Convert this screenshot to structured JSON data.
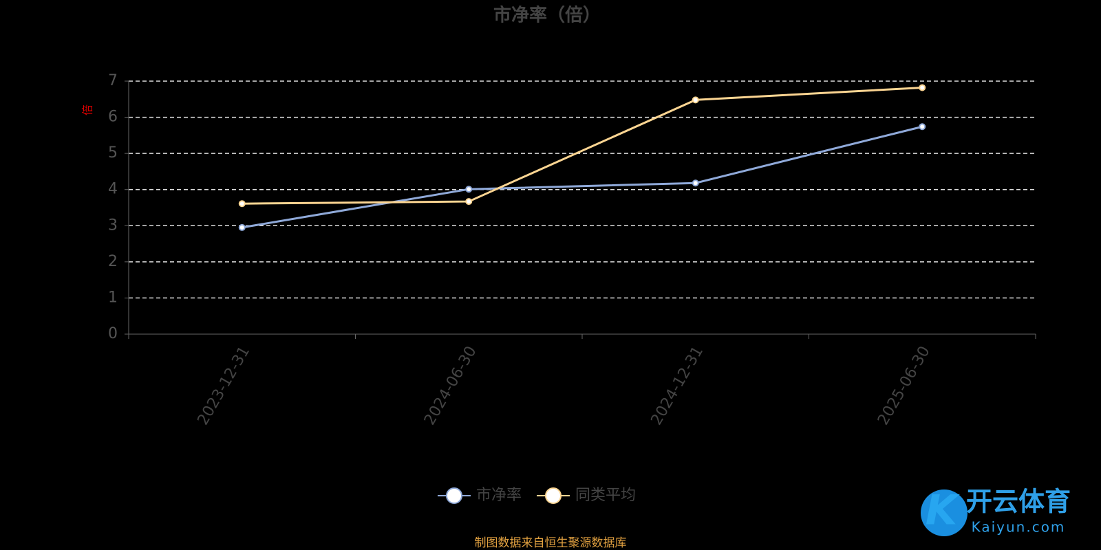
{
  "chart_data": {
    "type": "line",
    "title": "市净率（倍）",
    "y_label": "倍",
    "categories": [
      "2023-12-31",
      "2024-06-30",
      "2024-12-31",
      "2025-06-30"
    ],
    "series": [
      {
        "name": "市净率",
        "color": "#8fa9d9",
        "values": [
          2.95,
          4.01,
          4.18,
          5.74
        ]
      },
      {
        "name": "同类平均",
        "color": "#fcd592",
        "values": [
          3.61,
          3.67,
          6.48,
          6.82
        ]
      }
    ],
    "ylim": [
      0,
      7
    ],
    "yticks": [
      0,
      1,
      2,
      3,
      4,
      5,
      6,
      7
    ],
    "grid": true,
    "legend": "bottom",
    "source": "制图数据来自恒生聚源数据库"
  },
  "watermark": {
    "name": "开云体育",
    "site": "Kaiyun.com"
  }
}
